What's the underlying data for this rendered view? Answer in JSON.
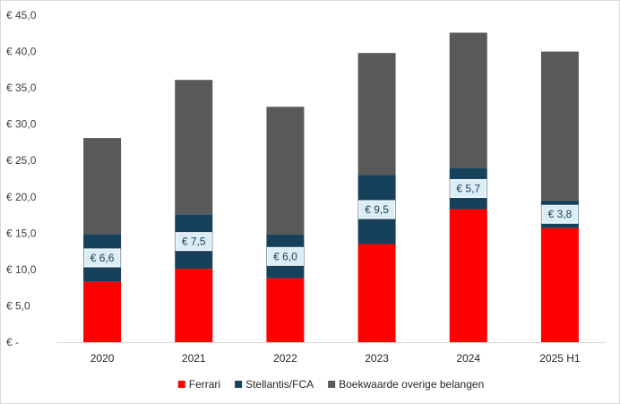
{
  "chart_data": {
    "type": "bar",
    "stacked": true,
    "categories": [
      "2020",
      "2021",
      "2022",
      "2023",
      "2024",
      "2025 H1"
    ],
    "series": [
      {
        "name": "Ferrari",
        "color": "#ff0000",
        "values": [
          8.3,
          10.1,
          8.8,
          13.5,
          18.3,
          15.7
        ]
      },
      {
        "name": "Stellantis/FCA",
        "color": "#17405a",
        "values": [
          6.6,
          7.5,
          6.0,
          9.5,
          5.7,
          3.8
        ]
      },
      {
        "name": "Boekwaarde overige belangen",
        "color": "#595959",
        "values": [
          13.2,
          18.5,
          17.6,
          16.8,
          18.6,
          20.5
        ]
      }
    ],
    "data_labels": [
      "€ 6,6",
      "€ 7,5",
      "€ 6,0",
      "€ 9,5",
      "€ 5,7",
      "€ 3,8"
    ],
    "y_ticks": [
      "€ -",
      "€ 5,0",
      "€ 10,0",
      "€ 15,0",
      "€ 20,0",
      "€ 25,0",
      "€ 30,0",
      "€ 35,0",
      "€ 40,0",
      "€ 45,0"
    ],
    "ylim": [
      0,
      45
    ],
    "grid": false,
    "legend_position": "bottom",
    "label_color": "#dbeef8"
  }
}
